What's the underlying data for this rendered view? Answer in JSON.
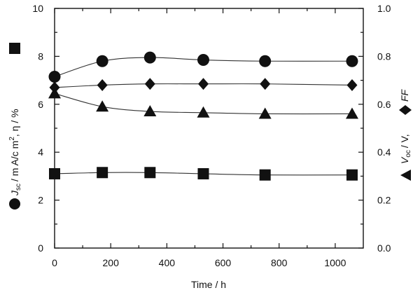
{
  "chart_data": {
    "type": "scatter",
    "x": [
      0,
      170,
      340,
      530,
      750,
      1060
    ],
    "xlim": [
      0,
      1100
    ],
    "xticks": [
      "0",
      "200",
      "400",
      "600",
      "800",
      "1000"
    ],
    "xlabel": "Time / h",
    "ylim_left": [
      0,
      10
    ],
    "yticks_left": [
      "0",
      "2",
      "4",
      "6",
      "8",
      "10"
    ],
    "ylim_right": [
      0,
      1
    ],
    "yticks_right": [
      "0.0",
      "0.2",
      "0.4",
      "0.6",
      "0.8",
      "1.0"
    ],
    "ylabel_left": {
      "jsc_symbol": "J",
      "jsc_sub": "sc",
      "jsc_units": "/ m A/c m",
      "sup": "2",
      "eta_part": ",  η / %"
    },
    "ylabel_right": {
      "voc_symbol": "V",
      "voc_sub": "oc",
      "voc_units": "/ V,",
      "ff": "FF"
    },
    "series": [
      {
        "marker": "circle",
        "axis": "left",
        "values": [
          7.15,
          7.8,
          7.95,
          7.85,
          7.8,
          7.8
        ]
      },
      {
        "marker": "diamond",
        "axis": "right",
        "values": [
          0.67,
          0.68,
          0.685,
          0.685,
          0.685,
          0.68
        ]
      },
      {
        "marker": "triangle",
        "axis": "right",
        "values": [
          0.645,
          0.59,
          0.57,
          0.565,
          0.56,
          0.56
        ]
      },
      {
        "marker": "square",
        "axis": "left",
        "values": [
          3.1,
          3.15,
          3.15,
          3.1,
          3.05,
          3.05
        ]
      }
    ]
  }
}
